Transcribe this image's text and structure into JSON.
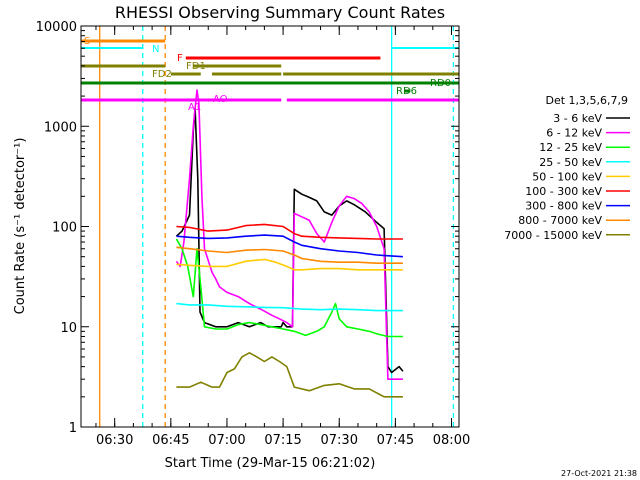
{
  "chart_data": {
    "type": "line",
    "title": "RHESSI Observing Summary Count Rates",
    "xlabel": "Start Time (29-Mar-15 06:21:02)",
    "ylabel": "Count Rate (s⁻¹ detector⁻¹)",
    "xlim_minutes": [
      21.0,
      122.0
    ],
    "ylim": [
      1,
      10000
    ],
    "yscale": "log",
    "x_ticks": [
      {
        "min": 30,
        "label": "06:30"
      },
      {
        "min": 45,
        "label": "06:45"
      },
      {
        "min": 60,
        "label": "07:00"
      },
      {
        "min": 75,
        "label": "07:15"
      },
      {
        "min": 90,
        "label": "07:30"
      },
      {
        "min": 105,
        "label": "07:45"
      },
      {
        "min": 120,
        "label": "08:00"
      }
    ],
    "y_ticks": [
      {
        "v": 1,
        "label": "1"
      },
      {
        "v": 10,
        "label": "10"
      },
      {
        "v": 100,
        "label": "100"
      },
      {
        "v": 1000,
        "label": "1000"
      },
      {
        "v": 10000,
        "label": "10000"
      }
    ],
    "legend_title": "Det 1,3,5,6,7,9",
    "legend_position": "right",
    "series": [
      {
        "name": "3 - 6 keV",
        "color": "#000000",
        "points": [
          [
            46.5,
            80
          ],
          [
            48,
            90
          ],
          [
            50,
            130
          ],
          [
            51,
            900
          ],
          [
            51.5,
            1500
          ],
          [
            52.2,
            300
          ],
          [
            52.8,
            14
          ],
          [
            54,
            11
          ],
          [
            57,
            10
          ],
          [
            60,
            10
          ],
          [
            63,
            11
          ],
          [
            66,
            10
          ],
          [
            69,
            11
          ],
          [
            71,
            10
          ],
          [
            72.5,
            10
          ],
          [
            73,
            10
          ],
          [
            74.5,
            10
          ],
          [
            75,
            11
          ],
          [
            76,
            10
          ],
          [
            77.5,
            10
          ],
          [
            78,
            235
          ],
          [
            80,
            210
          ],
          [
            82,
            195
          ],
          [
            84,
            180
          ],
          [
            86,
            140
          ],
          [
            88,
            130
          ],
          [
            90,
            160
          ],
          [
            92,
            180
          ],
          [
            94,
            165
          ],
          [
            97,
            140
          ],
          [
            100,
            110
          ],
          [
            102,
            95
          ],
          [
            103,
            4
          ],
          [
            104,
            3.5
          ],
          [
            106,
            4
          ],
          [
            107,
            3.6
          ]
        ]
      },
      {
        "name": "6 - 12 keV",
        "color": "#ff00ff",
        "points": [
          [
            46.5,
            45
          ],
          [
            47.5,
            40
          ],
          [
            48.5,
            70
          ],
          [
            50,
            300
          ],
          [
            51,
            1000
          ],
          [
            52,
            2300
          ],
          [
            52.5,
            1700
          ],
          [
            53.3,
            200
          ],
          [
            54,
            60
          ],
          [
            56,
            35
          ],
          [
            57,
            30
          ],
          [
            58,
            25
          ],
          [
            60,
            22
          ],
          [
            63,
            20
          ],
          [
            66,
            17
          ],
          [
            69,
            15
          ],
          [
            72,
            13
          ],
          [
            74,
            12
          ],
          [
            76,
            11
          ],
          [
            77.5,
            10
          ],
          [
            78,
            135
          ],
          [
            80,
            125
          ],
          [
            82,
            115
          ],
          [
            84,
            85
          ],
          [
            86,
            70
          ],
          [
            88,
            110
          ],
          [
            90,
            160
          ],
          [
            92,
            200
          ],
          [
            94,
            190
          ],
          [
            96,
            170
          ],
          [
            98,
            140
          ],
          [
            100,
            100
          ],
          [
            102,
            60
          ],
          [
            103,
            3
          ],
          [
            105,
            3
          ],
          [
            107,
            3
          ]
        ]
      },
      {
        "name": "12 - 25 keV",
        "color": "#00ff00",
        "points": [
          [
            46.5,
            75
          ],
          [
            48,
            60
          ],
          [
            49.5,
            40
          ],
          [
            51,
            20
          ],
          [
            52,
            60
          ],
          [
            53,
            25
          ],
          [
            54,
            10
          ],
          [
            57,
            9.5
          ],
          [
            60,
            9.5
          ],
          [
            63,
            10.5
          ],
          [
            66,
            11
          ],
          [
            69,
            10.5
          ],
          [
            72,
            10
          ],
          [
            75,
            9.5
          ],
          [
            78,
            9
          ],
          [
            81,
            8.2
          ],
          [
            84,
            9
          ],
          [
            86,
            10
          ],
          [
            88,
            14
          ],
          [
            89,
            17
          ],
          [
            90,
            12
          ],
          [
            92,
            10
          ],
          [
            95,
            9.5
          ],
          [
            98,
            9
          ],
          [
            100,
            8.5
          ],
          [
            103,
            8
          ],
          [
            107,
            8
          ]
        ]
      },
      {
        "name": "25 - 50 keV",
        "color": "#00ffff",
        "points": [
          [
            46.5,
            17
          ],
          [
            50,
            16.5
          ],
          [
            55,
            16.5
          ],
          [
            60,
            16
          ],
          [
            65,
            15.8
          ],
          [
            70,
            15.6
          ],
          [
            75,
            15.5
          ],
          [
            80,
            15
          ],
          [
            85,
            14.8
          ],
          [
            90,
            15
          ],
          [
            95,
            14.8
          ],
          [
            100,
            14.5
          ],
          [
            107,
            14.5
          ]
        ]
      },
      {
        "name": "50 - 100 keV",
        "color": "#ffcc00",
        "points": [
          [
            46.5,
            42
          ],
          [
            50,
            41
          ],
          [
            55,
            40
          ],
          [
            60,
            40
          ],
          [
            65,
            45
          ],
          [
            70,
            47
          ],
          [
            73,
            44
          ],
          [
            76,
            40
          ],
          [
            78,
            37
          ],
          [
            80,
            37
          ],
          [
            85,
            38
          ],
          [
            90,
            38
          ],
          [
            95,
            37
          ],
          [
            100,
            37
          ],
          [
            107,
            37
          ]
        ]
      },
      {
        "name": "100 - 300 keV",
        "color": "#ff0000",
        "points": [
          [
            46.5,
            100
          ],
          [
            50,
            98
          ],
          [
            55,
            90
          ],
          [
            60,
            92
          ],
          [
            65,
            102
          ],
          [
            70,
            105
          ],
          [
            75,
            100
          ],
          [
            78,
            85
          ],
          [
            80,
            80
          ],
          [
            85,
            78
          ],
          [
            90,
            77
          ],
          [
            95,
            76
          ],
          [
            100,
            75
          ],
          [
            107,
            75
          ]
        ]
      },
      {
        "name": "300 - 800 keV",
        "color": "#0000ff",
        "points": [
          [
            46.5,
            80
          ],
          [
            50,
            78
          ],
          [
            55,
            76
          ],
          [
            60,
            77
          ],
          [
            65,
            80
          ],
          [
            70,
            82
          ],
          [
            75,
            80
          ],
          [
            78,
            70
          ],
          [
            80,
            65
          ],
          [
            85,
            60
          ],
          [
            90,
            57
          ],
          [
            95,
            55
          ],
          [
            100,
            52
          ],
          [
            107,
            50
          ]
        ]
      },
      {
        "name": "800 - 7000 keV",
        "color": "#ff8800",
        "points": [
          [
            46.5,
            62
          ],
          [
            50,
            60
          ],
          [
            55,
            57
          ],
          [
            60,
            55
          ],
          [
            65,
            58
          ],
          [
            70,
            59
          ],
          [
            75,
            57
          ],
          [
            78,
            52
          ],
          [
            80,
            48
          ],
          [
            85,
            45
          ],
          [
            90,
            44
          ],
          [
            95,
            44
          ],
          [
            100,
            43
          ],
          [
            107,
            43
          ]
        ]
      },
      {
        "name": "7000 - 15000 keV",
        "color": "#808000",
        "points": [
          [
            46.5,
            2.5
          ],
          [
            50,
            2.5
          ],
          [
            53,
            2.8
          ],
          [
            56,
            2.5
          ],
          [
            58,
            2.5
          ],
          [
            60,
            3.5
          ],
          [
            62,
            3.8
          ],
          [
            64,
            5
          ],
          [
            66,
            5.5
          ],
          [
            68,
            5
          ],
          [
            70,
            4.5
          ],
          [
            72,
            5
          ],
          [
            74,
            4.5
          ],
          [
            76,
            4
          ],
          [
            78,
            2.5
          ],
          [
            82,
            2.3
          ],
          [
            86,
            2.6
          ],
          [
            90,
            2.7
          ],
          [
            94,
            2.4
          ],
          [
            98,
            2.4
          ],
          [
            102,
            2
          ],
          [
            107,
            2
          ]
        ]
      }
    ],
    "flag_bars": [
      {
        "label": "S",
        "color": "#ff8800",
        "segments": [
          [
            21,
            43.5
          ]
        ]
      },
      {
        "label": "N",
        "color": "#00ffff",
        "segments": [
          [
            21,
            37.5
          ],
          [
            104,
            122
          ]
        ]
      },
      {
        "label": "F",
        "color": "#ff0000",
        "segments": [
          [
            49,
            101
          ]
        ]
      },
      {
        "label": "FD1",
        "color": "#808000",
        "segments": [
          [
            21,
            43.5
          ],
          [
            51,
            74.5
          ]
        ]
      },
      {
        "label": "FD2",
        "color": "#808000",
        "segments": [
          [
            45,
            53
          ],
          [
            56,
            74.5
          ],
          [
            75,
            122
          ]
        ]
      },
      {
        "label": "RD0",
        "color": "#008000",
        "segments": [
          [
            21,
            122
          ]
        ]
      },
      {
        "label": "RD6",
        "color": "#008000",
        "segments": [
          [
            107.5,
            109
          ]
        ]
      },
      {
        "label": "A1",
        "color": "#ff00ff",
        "segments": [
          [
            21,
            74.5
          ],
          [
            76,
            122
          ]
        ]
      },
      {
        "label": "AO",
        "color": "#ff00ff",
        "segments": [
          [
            53.5,
            54.5
          ]
        ]
      }
    ],
    "vertical_markers": [
      {
        "min": 26.0,
        "color": "#ff8800",
        "style": "solid"
      },
      {
        "min": 37.5,
        "color": "#00ffff",
        "style": "dashed"
      },
      {
        "min": 43.5,
        "color": "#ff8800",
        "style": "dashed"
      },
      {
        "min": 104.0,
        "color": "#00ffff",
        "style": "solid"
      },
      {
        "min": 120.5,
        "color": "#00ffff",
        "style": "dashed"
      }
    ]
  },
  "footer_date": "27-Oct-2021 21:38"
}
